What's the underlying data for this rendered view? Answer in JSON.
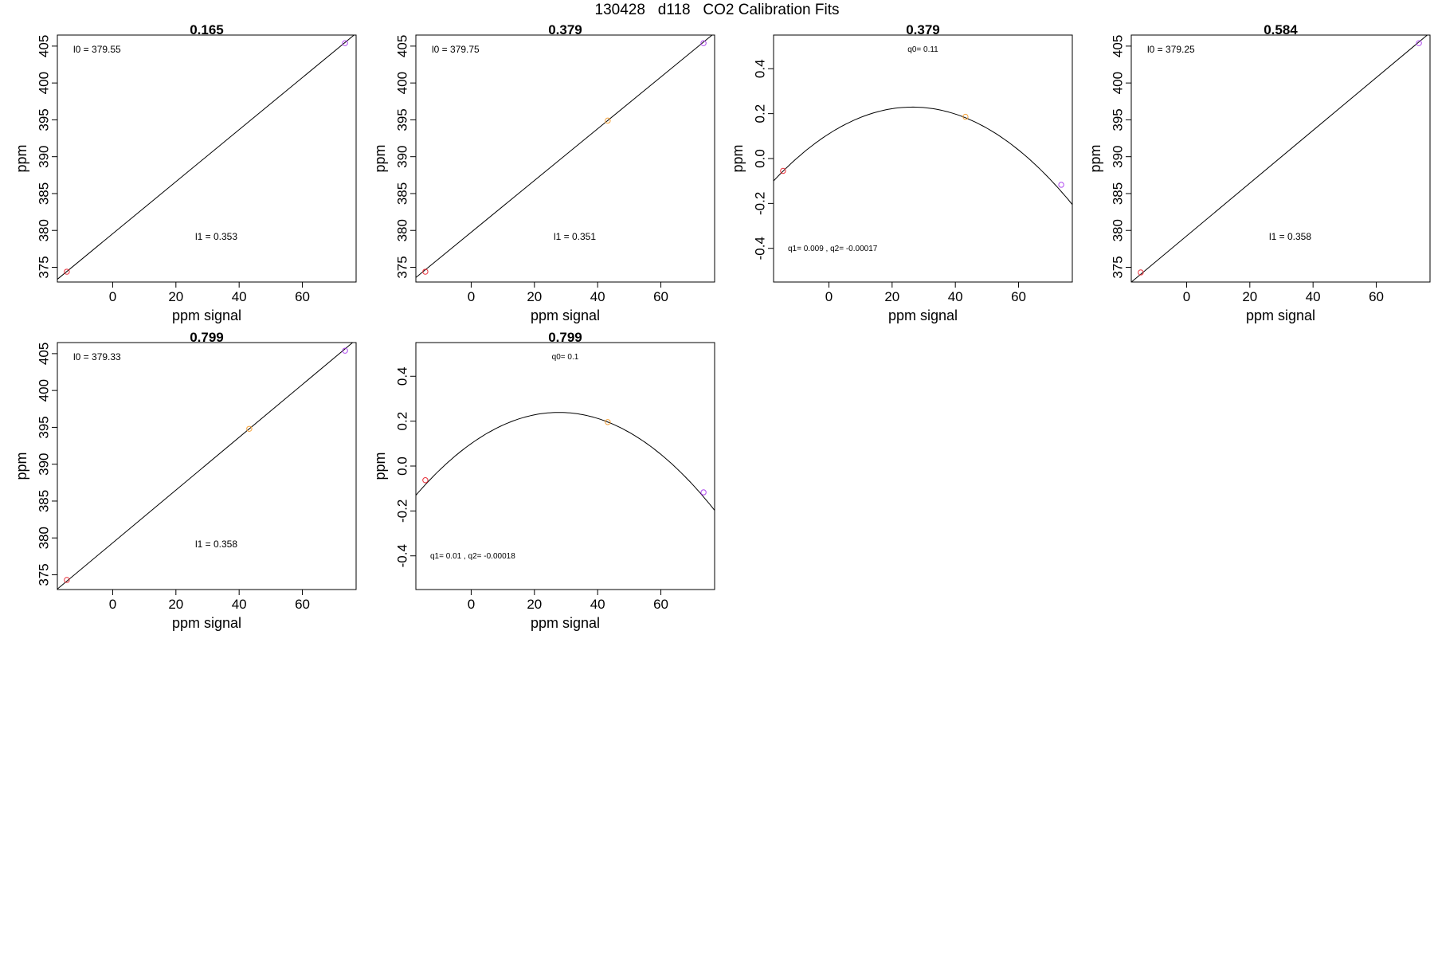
{
  "page_title": "130428   d118   CO2 Calibration Fits",
  "colors": {
    "low": "#e8303a",
    "mid": "#f4a23a",
    "high": "#b04af0",
    "line": "#000000"
  },
  "chart_data": [
    {
      "type": "scatter",
      "fit": "linear",
      "title": "0.165",
      "xlabel": "ppm signal",
      "ylabel": "ppm",
      "xlim": [
        -17.5,
        77
      ],
      "ylim": [
        373,
        406.5
      ],
      "xticks": [
        0,
        20,
        40,
        60
      ],
      "yticks": [
        375,
        380,
        385,
        390,
        395,
        400,
        405
      ],
      "annotations": [
        "l0 =  379.55",
        "l1 =  0.353"
      ],
      "points": [
        {
          "x": -14.5,
          "y": 374.4,
          "color": "low"
        },
        {
          "x": 73.5,
          "y": 405.4,
          "color": "high"
        }
      ],
      "line": {
        "intercept": 379.55,
        "slope": 0.353
      }
    },
    {
      "type": "scatter",
      "fit": "linear",
      "title": "0.379",
      "xlabel": "ppm signal",
      "ylabel": "ppm",
      "xlim": [
        -17.5,
        77
      ],
      "ylim": [
        373,
        406.5
      ],
      "xticks": [
        0,
        20,
        40,
        60
      ],
      "yticks": [
        375,
        380,
        385,
        390,
        395,
        400,
        405
      ],
      "annotations": [
        "l0 =  379.75",
        "l1 =  0.351"
      ],
      "points": [
        {
          "x": -14.5,
          "y": 374.4,
          "color": "low"
        },
        {
          "x": 43.2,
          "y": 394.9,
          "color": "mid"
        },
        {
          "x": 73.5,
          "y": 405.4,
          "color": "high"
        }
      ],
      "line": {
        "intercept": 379.75,
        "slope": 0.351
      }
    },
    {
      "type": "scatter",
      "fit": "quadratic",
      "title": "0.379",
      "xlabel": "ppm signal",
      "ylabel": "ppm",
      "xlim": [
        -17.5,
        77
      ],
      "ylim": [
        -0.55,
        0.55
      ],
      "xticks": [
        0,
        20,
        40,
        60
      ],
      "yticks": [
        -0.4,
        -0.2,
        0.0,
        0.2,
        0.4
      ],
      "annotations": [
        "q0= 0.11",
        "q1= 0.009 , q2= -0.00017"
      ],
      "points": [
        {
          "x": -14.5,
          "y": -0.055,
          "color": "low"
        },
        {
          "x": 43.2,
          "y": 0.186,
          "color": "mid"
        },
        {
          "x": 73.5,
          "y": -0.117,
          "color": "high"
        }
      ],
      "curve": {
        "q0": 0.11,
        "q1": 0.009,
        "q2": -0.00017
      }
    },
    {
      "type": "scatter",
      "fit": "linear",
      "title": "0.584",
      "xlabel": "ppm signal",
      "ylabel": "ppm",
      "xlim": [
        -17.5,
        77
      ],
      "ylim": [
        373,
        406.5
      ],
      "xticks": [
        0,
        20,
        40,
        60
      ],
      "yticks": [
        375,
        380,
        385,
        390,
        395,
        400,
        405
      ],
      "annotations": [
        "l0 =  379.25",
        "l1 =  0.358"
      ],
      "points": [
        {
          "x": -14.5,
          "y": 374.3,
          "color": "low"
        },
        {
          "x": 73.5,
          "y": 405.4,
          "color": "high"
        }
      ],
      "line": {
        "intercept": 379.25,
        "slope": 0.358
      }
    },
    {
      "type": "scatter",
      "fit": "linear",
      "title": "0.799",
      "xlabel": "ppm signal",
      "ylabel": "ppm",
      "xlim": [
        -17.5,
        77
      ],
      "ylim": [
        373,
        406.5
      ],
      "xticks": [
        0,
        20,
        40,
        60
      ],
      "yticks": [
        375,
        380,
        385,
        390,
        395,
        400,
        405
      ],
      "annotations": [
        "l0 =  379.33",
        "l1 =  0.358"
      ],
      "points": [
        {
          "x": -14.5,
          "y": 374.3,
          "color": "low"
        },
        {
          "x": 43.2,
          "y": 394.8,
          "color": "mid"
        },
        {
          "x": 73.5,
          "y": 405.4,
          "color": "high"
        }
      ],
      "line": {
        "intercept": 379.33,
        "slope": 0.358
      }
    },
    {
      "type": "scatter",
      "fit": "quadratic",
      "title": "0.799",
      "xlabel": "ppm signal",
      "ylabel": "ppm",
      "xlim": [
        -17.5,
        77
      ],
      "ylim": [
        -0.55,
        0.55
      ],
      "xticks": [
        0,
        20,
        40,
        60
      ],
      "yticks": [
        -0.4,
        -0.2,
        0.0,
        0.2,
        0.4
      ],
      "annotations": [
        "q0= 0.1",
        "q1= 0.01 , q2= -0.00018"
      ],
      "points": [
        {
          "x": -14.5,
          "y": -0.063,
          "color": "low"
        },
        {
          "x": 43.2,
          "y": 0.196,
          "color": "mid"
        },
        {
          "x": 73.5,
          "y": -0.117,
          "color": "high"
        }
      ],
      "curve": {
        "q0": 0.1,
        "q1": 0.01,
        "q2": -0.00018
      }
    }
  ]
}
